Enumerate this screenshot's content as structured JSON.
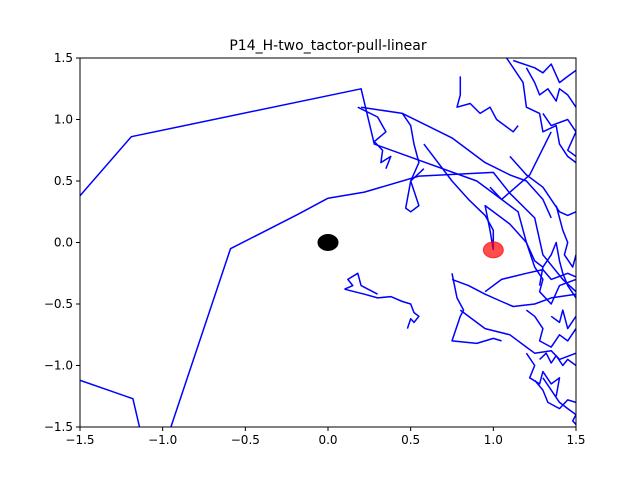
{
  "chart_data": {
    "type": "line",
    "title": "P14_H-two_tactor-pull-linear",
    "xlabel": "",
    "ylabel": "",
    "xlim": [
      -1.5,
      1.5
    ],
    "ylim": [
      -1.5,
      1.5
    ],
    "xticks": [
      -1.5,
      -1.0,
      -0.5,
      0.0,
      0.5,
      1.0,
      1.5
    ],
    "xtick_labels": [
      "−1.5",
      "−1.0",
      "−0.5",
      "0.0",
      "0.5",
      "1.0",
      "1.5"
    ],
    "yticks": [
      -1.5,
      -1.0,
      -0.5,
      0.0,
      0.5,
      1.0,
      1.5
    ],
    "ytick_labels": [
      "−1.5",
      "−1.0",
      "−0.5",
      "0.0",
      "0.5",
      "1.0",
      "1.5"
    ],
    "grid": false,
    "legend": false,
    "colors": {
      "trajectory": "#0000ff",
      "origin": "#000000",
      "target": "#ff0000"
    },
    "markers": [
      {
        "name": "origin",
        "x": 0.0,
        "y": 0.0,
        "color": "#000000",
        "alpha": 1.0
      },
      {
        "name": "target",
        "x": 1.0,
        "y": -0.06,
        "color": "#ff0000",
        "alpha": 0.7
      }
    ],
    "series": [
      {
        "points": [
          [
            -1.5,
            0.38
          ],
          [
            -1.19,
            0.86
          ],
          [
            0.2,
            1.25
          ],
          [
            0.28,
            0.8
          ],
          [
            0.9,
            0.5
          ],
          [
            1.05,
            0.35
          ],
          [
            1.22,
            0.55
          ],
          [
            1.35,
            0.9
          ]
        ]
      },
      {
        "points": [
          [
            -1.5,
            -1.12
          ],
          [
            -1.18,
            -1.27
          ],
          [
            -1.14,
            -1.5
          ]
        ]
      },
      {
        "points": [
          [
            -0.95,
            -1.5
          ],
          [
            -0.59,
            -0.05
          ],
          [
            -0.18,
            0.23
          ],
          [
            0.0,
            0.36
          ],
          [
            0.22,
            0.41
          ],
          [
            0.55,
            0.54
          ],
          [
            1.0,
            0.57
          ],
          [
            1.1,
            0.4
          ],
          [
            1.25,
            0.2
          ],
          [
            1.3,
            -0.1
          ],
          [
            1.42,
            -0.3
          ],
          [
            1.5,
            -0.4
          ]
        ]
      },
      {
        "points": [
          [
            0.18,
            1.1
          ],
          [
            0.3,
            1.02
          ],
          [
            0.35,
            0.9
          ],
          [
            0.28,
            0.82
          ],
          [
            0.33,
            0.75
          ],
          [
            0.32,
            0.65
          ],
          [
            0.38,
            0.7
          ],
          [
            0.35,
            0.6
          ]
        ]
      },
      {
        "points": [
          [
            0.2,
            1.1
          ],
          [
            0.45,
            1.05
          ],
          [
            0.5,
            0.95
          ],
          [
            0.52,
            0.8
          ],
          [
            0.55,
            0.65
          ],
          [
            0.5,
            0.5
          ],
          [
            0.55,
            0.3
          ],
          [
            0.5,
            0.25
          ],
          [
            0.47,
            0.28
          ],
          [
            0.5,
            0.5
          ],
          [
            0.58,
            0.6
          ]
        ]
      },
      {
        "points": [
          [
            0.45,
            1.05
          ],
          [
            0.75,
            0.85
          ],
          [
            0.95,
            0.65
          ],
          [
            1.1,
            0.55
          ],
          [
            1.2,
            0.5
          ],
          [
            1.3,
            0.35
          ],
          [
            1.35,
            0.2
          ]
        ]
      },
      {
        "points": [
          [
            0.8,
            1.35
          ],
          [
            0.8,
            1.2
          ],
          [
            0.78,
            1.1
          ],
          [
            0.86,
            1.13
          ],
          [
            0.92,
            1.05
          ],
          [
            0.98,
            1.1
          ],
          [
            1.02,
            1.0
          ],
          [
            1.12,
            0.9
          ],
          [
            1.15,
            0.95
          ]
        ]
      },
      {
        "points": [
          [
            0.58,
            0.8
          ],
          [
            0.75,
            0.5
          ],
          [
            0.85,
            0.35
          ],
          [
            0.95,
            0.22
          ],
          [
            1.0,
            0.1
          ],
          [
            1.0,
            -0.06
          ]
        ]
      },
      {
        "points": [
          [
            1.0,
            -0.06
          ],
          [
            0.98,
            0.1
          ],
          [
            0.95,
            0.3
          ],
          [
            1.05,
            0.2
          ],
          [
            1.1,
            0.15
          ],
          [
            1.2,
            0.0
          ],
          [
            1.25,
            -0.2
          ],
          [
            1.3,
            -0.3
          ],
          [
            1.28,
            -0.4
          ],
          [
            1.35,
            -0.5
          ],
          [
            1.4,
            -0.35
          ],
          [
            1.5,
            -0.3
          ]
        ]
      },
      {
        "points": [
          [
            1.08,
            1.5
          ],
          [
            1.18,
            1.3
          ],
          [
            1.2,
            1.1
          ],
          [
            1.28,
            1.05
          ],
          [
            1.3,
            0.9
          ],
          [
            1.38,
            0.95
          ],
          [
            1.4,
            0.8
          ],
          [
            1.45,
            0.7
          ],
          [
            1.5,
            0.65
          ]
        ]
      },
      {
        "points": [
          [
            1.12,
            1.48
          ],
          [
            1.25,
            1.42
          ],
          [
            1.3,
            1.38
          ],
          [
            1.35,
            1.45
          ],
          [
            1.4,
            1.3
          ],
          [
            1.45,
            1.35
          ],
          [
            1.5,
            1.4
          ]
        ]
      },
      {
        "points": [
          [
            1.2,
            1.42
          ],
          [
            1.25,
            1.3
          ],
          [
            1.28,
            1.2
          ],
          [
            1.33,
            1.25
          ],
          [
            1.38,
            1.15
          ],
          [
            1.4,
            1.25
          ],
          [
            1.45,
            1.2
          ],
          [
            1.5,
            1.1
          ]
        ]
      },
      {
        "points": [
          [
            1.3,
            1.05
          ],
          [
            1.35,
            0.95
          ],
          [
            1.45,
            1.0
          ],
          [
            1.5,
            0.9
          ],
          [
            1.45,
            0.75
          ],
          [
            1.5,
            0.7
          ]
        ]
      },
      {
        "points": [
          [
            1.1,
            0.7
          ],
          [
            1.2,
            0.55
          ],
          [
            1.3,
            0.45
          ],
          [
            1.4,
            0.25
          ],
          [
            1.45,
            0.22
          ],
          [
            1.5,
            0.25
          ]
        ]
      },
      {
        "points": [
          [
            0.98,
            0.45
          ],
          [
            1.05,
            0.35
          ],
          [
            1.1,
            0.3
          ],
          [
            1.15,
            0.25
          ],
          [
            1.2,
            0.0
          ],
          [
            1.25,
            -0.15
          ],
          [
            1.3,
            -0.2
          ],
          [
            1.28,
            -0.35
          ]
        ]
      },
      {
        "points": [
          [
            0.1,
            -0.38
          ],
          [
            0.22,
            -0.42
          ],
          [
            0.3,
            -0.45
          ],
          [
            0.38,
            -0.44
          ],
          [
            0.45,
            -0.48
          ],
          [
            0.5,
            -0.5
          ],
          [
            0.52,
            -0.57
          ],
          [
            0.55,
            -0.6
          ],
          [
            0.52,
            -0.65
          ],
          [
            0.5,
            -0.62
          ],
          [
            0.48,
            -0.7
          ]
        ]
      },
      {
        "points": [
          [
            0.1,
            -0.38
          ],
          [
            0.15,
            -0.35
          ],
          [
            0.12,
            -0.3
          ],
          [
            0.18,
            -0.25
          ],
          [
            0.2,
            -0.35
          ],
          [
            0.3,
            -0.42
          ]
        ]
      },
      {
        "points": [
          [
            0.75,
            -0.25
          ],
          [
            0.78,
            -0.45
          ],
          [
            0.82,
            -0.55
          ],
          [
            0.8,
            -0.6
          ],
          [
            0.75,
            -0.8
          ],
          [
            0.9,
            -0.82
          ],
          [
            1.0,
            -0.78
          ],
          [
            1.05,
            -0.8
          ]
        ]
      },
      {
        "points": [
          [
            0.8,
            -0.55
          ],
          [
            0.95,
            -0.7
          ],
          [
            1.1,
            -0.75
          ],
          [
            1.2,
            -0.85
          ],
          [
            1.25,
            -0.9
          ],
          [
            1.35,
            -0.88
          ],
          [
            1.4,
            -0.95
          ],
          [
            1.5,
            -0.9
          ]
        ]
      },
      {
        "points": [
          [
            0.75,
            -0.3
          ],
          [
            0.85,
            -0.35
          ],
          [
            0.95,
            -0.42
          ],
          [
            1.05,
            -0.48
          ],
          [
            1.12,
            -0.52
          ],
          [
            1.25,
            -0.5
          ],
          [
            1.35,
            -0.45
          ],
          [
            1.5,
            -0.42
          ]
        ]
      },
      {
        "points": [
          [
            0.95,
            -0.4
          ],
          [
            1.05,
            -0.3
          ],
          [
            1.2,
            -0.25
          ],
          [
            1.3,
            -0.22
          ],
          [
            1.35,
            -0.3
          ],
          [
            1.45,
            -0.25
          ],
          [
            1.5,
            -0.28
          ]
        ]
      },
      {
        "points": [
          [
            1.2,
            -0.55
          ],
          [
            1.25,
            -0.6
          ],
          [
            1.3,
            -0.7
          ],
          [
            1.28,
            -0.8
          ],
          [
            1.35,
            -0.85
          ],
          [
            1.4,
            -0.75
          ],
          [
            1.45,
            -0.8
          ],
          [
            1.5,
            -0.7
          ]
        ]
      },
      {
        "points": [
          [
            1.2,
            -0.9
          ],
          [
            1.25,
            -1.0
          ],
          [
            1.22,
            -1.1
          ],
          [
            1.28,
            -1.15
          ],
          [
            1.3,
            -1.05
          ],
          [
            1.35,
            -1.15
          ],
          [
            1.4,
            -1.1
          ],
          [
            1.38,
            -1.25
          ]
        ]
      },
      {
        "points": [
          [
            1.3,
            -1.1
          ],
          [
            1.35,
            -1.2
          ],
          [
            1.4,
            -1.3
          ],
          [
            1.45,
            -1.35
          ],
          [
            1.5,
            -1.4
          ],
          [
            1.48,
            -1.45
          ],
          [
            1.5,
            -1.48
          ]
        ]
      },
      {
        "points": [
          [
            1.25,
            -1.12
          ],
          [
            1.3,
            -1.2
          ],
          [
            1.33,
            -1.3
          ],
          [
            1.4,
            -1.35
          ],
          [
            1.45,
            -1.28
          ],
          [
            1.5,
            -1.3
          ]
        ]
      },
      {
        "points": [
          [
            1.35,
            -0.6
          ],
          [
            1.4,
            -0.65
          ],
          [
            1.42,
            -0.55
          ],
          [
            1.45,
            -0.7
          ],
          [
            1.5,
            -0.6
          ]
        ]
      },
      {
        "points": [
          [
            1.38,
            0.3
          ],
          [
            1.42,
            0.1
          ],
          [
            1.45,
            0.0
          ],
          [
            1.43,
            -0.1
          ],
          [
            1.48,
            -0.2
          ],
          [
            1.5,
            -0.1
          ]
        ]
      },
      {
        "points": [
          [
            1.3,
            -0.2
          ],
          [
            1.35,
            -0.1
          ],
          [
            1.38,
            0.0
          ],
          [
            1.4,
            -0.15
          ],
          [
            1.42,
            -0.25
          ],
          [
            1.45,
            -0.35
          ],
          [
            1.5,
            -0.45
          ]
        ]
      },
      {
        "points": [
          [
            1.28,
            -0.95
          ],
          [
            1.32,
            -0.9
          ],
          [
            1.35,
            -0.98
          ],
          [
            1.38,
            -0.92
          ],
          [
            1.42,
            -1.0
          ],
          [
            1.45,
            -0.95
          ],
          [
            1.5,
            -1.0
          ]
        ]
      }
    ]
  }
}
